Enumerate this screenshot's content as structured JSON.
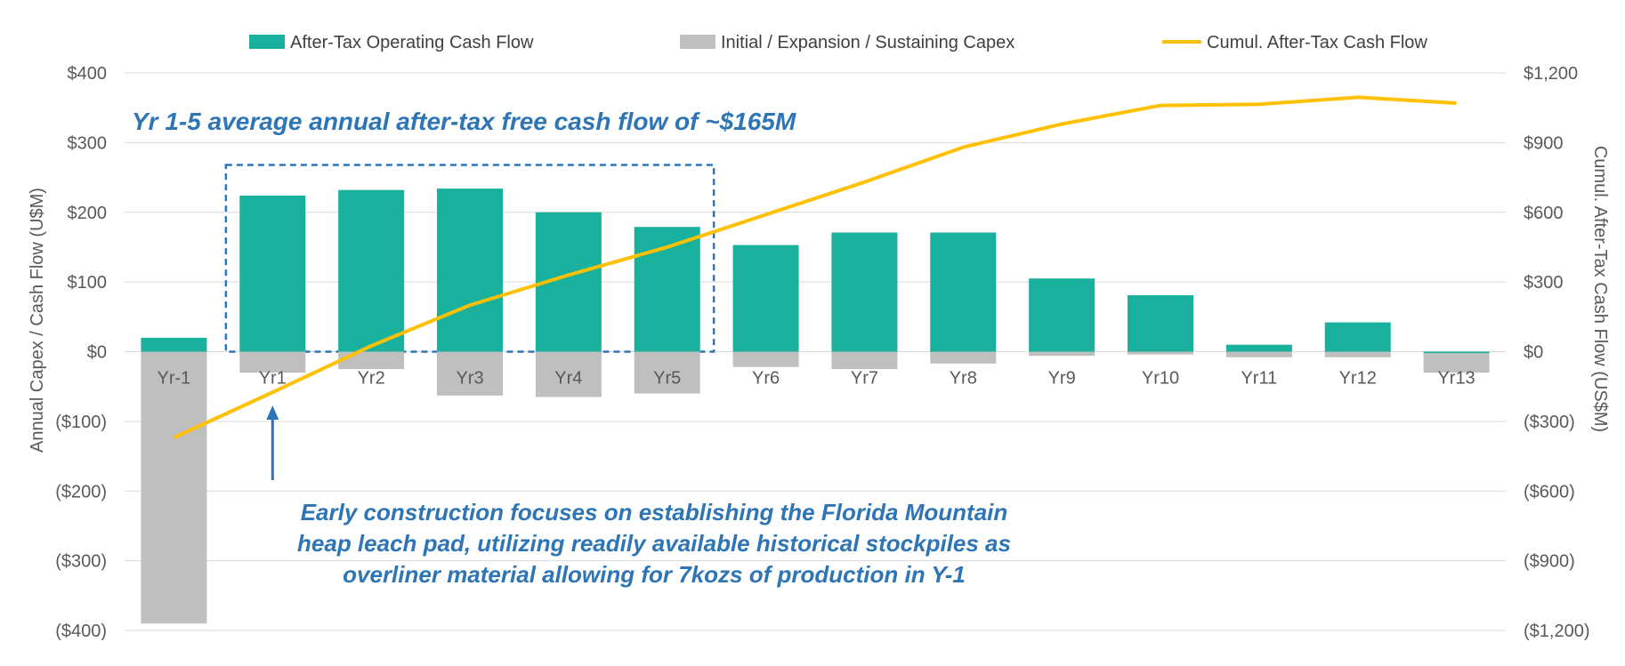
{
  "chart_data": {
    "type": "bar",
    "categories": [
      "Yr-1",
      "Yr1",
      "Yr2",
      "Yr3",
      "Yr4",
      "Yr5",
      "Yr6",
      "Yr7",
      "Yr8",
      "Yr9",
      "Yr10",
      "Yr11",
      "Yr12",
      "Yr13"
    ],
    "series": [
      {
        "name": "After-Tax Operating Cash Flow",
        "kind": "bar",
        "axis": "left",
        "color": "#1ab09e",
        "values": [
          20,
          224,
          232,
          234,
          200,
          179,
          153,
          171,
          171,
          105,
          81,
          10,
          42,
          -2
        ]
      },
      {
        "name": "Initial / Expansion / Sustaining Capex",
        "kind": "bar",
        "axis": "left",
        "color": "#bfbfbf",
        "values": [
          -390,
          -30,
          -25,
          -63,
          -65,
          -60,
          -22,
          -25,
          -17,
          -6,
          -4,
          -8,
          -8,
          -30
        ]
      },
      {
        "name": "Cumul. After-Tax Cash Flow",
        "kind": "line",
        "axis": "right",
        "color": "#ffc000",
        "values": [
          -370,
          -175,
          25,
          200,
          330,
          450,
          590,
          730,
          880,
          980,
          1060,
          1065,
          1095,
          1070
        ]
      }
    ],
    "y_left": {
      "label": "Annual Capex / Cash Flow (U$M)",
      "range": [
        -400,
        400
      ],
      "ticks": [
        400,
        300,
        200,
        100,
        0,
        -100,
        -200,
        -300,
        -400
      ],
      "tick_labels": [
        "$400",
        "$300",
        "$200",
        "$100",
        "$0",
        "($100)",
        "($200)",
        "($300)",
        "($400)"
      ]
    },
    "y_right": {
      "label": "Cumul. After-Tax Cash Flow (US$M)",
      "range": [
        -1200,
        1200
      ],
      "ticks": [
        1200,
        900,
        600,
        300,
        0,
        -300,
        -600,
        -900,
        -1200
      ],
      "tick_labels": [
        "$1,200",
        "$900",
        "$600",
        "$300",
        "$0",
        "($300)",
        "($600)",
        "($900)",
        "($1,200)"
      ]
    },
    "grid": true,
    "legend_position": "top",
    "highlight_box": {
      "from": "Yr1",
      "to": "Yr5",
      "y_range": [
        0,
        268
      ]
    },
    "arrow_target": "Yr1",
    "annotations": {
      "headline": "Yr 1-5 average annual after-tax free cash flow of ~$165M",
      "note_lines": [
        "Early construction focuses on establishing the Florida Mountain",
        "heap leach pad, utilizing readily available historical stockpiles as",
        "overliner material allowing for 7kozs of production in Y-1"
      ]
    },
    "colors": {
      "annotation": "#2e75b6",
      "grid": "#d9d9d9",
      "tick_text": "#595959"
    }
  }
}
